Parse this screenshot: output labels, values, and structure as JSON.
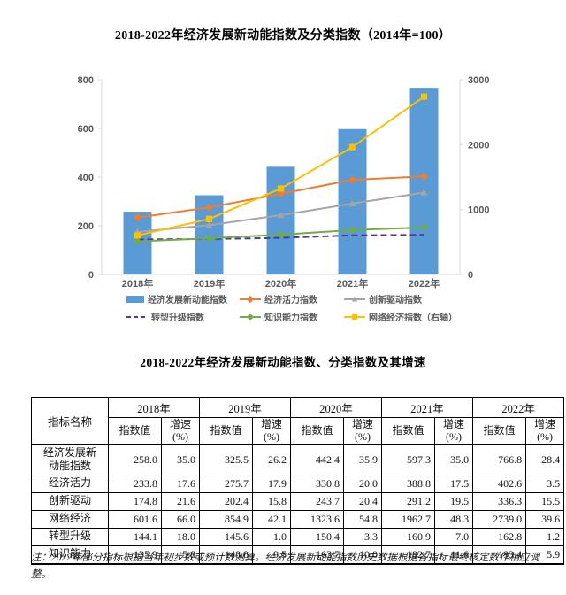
{
  "chart_data": {
    "type": "bar+line combo",
    "title": "2018-2022年经济发展新动能指数及分类指数（2014年=100）",
    "categories": [
      "2018年",
      "2019年",
      "2020年",
      "2021年",
      "2022年"
    ],
    "series": [
      {
        "name": "经济发展新动能指数",
        "type": "bar",
        "axis": "left",
        "color": "#5b9bd5",
        "marker": "none",
        "values": [
          258.0,
          325.5,
          442.4,
          597.3,
          766.8
        ]
      },
      {
        "name": "经济活力指数",
        "type": "line",
        "axis": "left",
        "color": "#ed7d31",
        "marker": "diamond",
        "values": [
          233.8,
          275.7,
          330.8,
          388.8,
          402.6
        ]
      },
      {
        "name": "创新驱动指数",
        "type": "line",
        "axis": "left",
        "color": "#a5a5a5",
        "marker": "triangle",
        "values": [
          174.8,
          202.4,
          243.7,
          291.2,
          336.3
        ]
      },
      {
        "name": "转型升级指数",
        "type": "line",
        "axis": "left",
        "color": "#4b3a97",
        "marker": "none",
        "dash": true,
        "values": [
          144.1,
          145.6,
          150.4,
          160.9,
          162.8
        ]
      },
      {
        "name": "知识能力指数",
        "type": "line",
        "axis": "left",
        "color": "#70ad47",
        "marker": "circle",
        "values": [
          135.9,
          148.8,
          163.7,
          182.7,
          193.4
        ]
      },
      {
        "name": "网络经济指数（右轴）",
        "type": "line",
        "axis": "right",
        "color": "#ffc000",
        "marker": "square",
        "values": [
          601.6,
          854.9,
          1323.6,
          1962.7,
          2739.0
        ]
      }
    ],
    "left_axis": {
      "ticks": [
        0,
        200,
        400,
        600,
        800
      ],
      "max": 800
    },
    "right_axis": {
      "ticks": [
        0,
        1000,
        2000,
        3000
      ],
      "max": 3000
    },
    "legend_position": "bottom",
    "grid": false
  },
  "table_title": "2018-2022年经济发展新动能指数、分类指数及其增速",
  "table": {
    "name_header": "指标名称",
    "years": [
      "2018年",
      "2019年",
      "2020年",
      "2021年",
      "2022年"
    ],
    "sub_headers": [
      "指数值",
      "增速\n(%)"
    ],
    "rows": [
      {
        "name": "经济发展新\n动能指数",
        "values": [
          "258.0",
          "35.0",
          "325.5",
          "26.2",
          "442.4",
          "35.9",
          "597.3",
          "35.0",
          "766.8",
          "28.4"
        ]
      },
      {
        "name": "经济活力",
        "values": [
          "233.8",
          "17.6",
          "275.7",
          "17.9",
          "330.8",
          "20.0",
          "388.8",
          "17.5",
          "402.6",
          "3.5"
        ]
      },
      {
        "name": "创新驱动",
        "values": [
          "174.8",
          "21.6",
          "202.4",
          "15.8",
          "243.7",
          "20.4",
          "291.2",
          "19.5",
          "336.3",
          "15.5"
        ]
      },
      {
        "name": "网络经济",
        "values": [
          "601.6",
          "66.0",
          "854.9",
          "42.1",
          "1323.6",
          "54.8",
          "1962.7",
          "48.3",
          "2739.0",
          "39.6"
        ]
      },
      {
        "name": "转型升级",
        "values": [
          "144.1",
          "18.0",
          "145.6",
          "1.0",
          "150.4",
          "3.3",
          "160.9",
          "7.0",
          "162.8",
          "1.2"
        ]
      },
      {
        "name": "知识能力",
        "values": [
          "135.9",
          "5.8",
          "148.8",
          "9.5",
          "163.7",
          "10.0",
          "182.7",
          "11.6",
          "193.4",
          "5.9"
        ]
      }
    ]
  },
  "note": "注：2022年部分指标根据当年初步数或预计数测算。经济发展新动能指数历史数据根据各指标最终核定数作相应调整。",
  "colors": {
    "axis_text": "#595959",
    "axis_line": "#d9d9d9",
    "table_border": "#000000"
  }
}
